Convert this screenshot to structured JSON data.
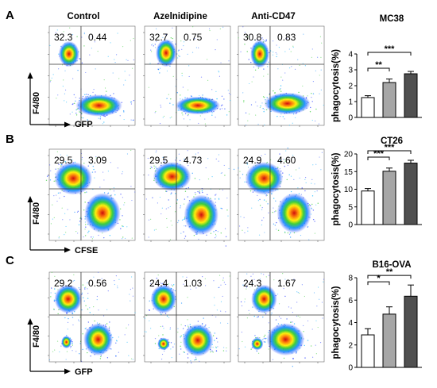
{
  "columns": [
    "Control",
    "Azelnidipine",
    "Anti-CD47"
  ],
  "rows": [
    {
      "label": "A",
      "xaxis": "GFP",
      "yaxis": "F4/80",
      "quadrants": [
        [
          "32.3",
          "0.44"
        ],
        [
          "32.7",
          "0.75"
        ],
        [
          "30.8",
          "0.83"
        ]
      ]
    },
    {
      "label": "B",
      "xaxis": "CFSE",
      "yaxis": "F4/80",
      "quadrants": [
        [
          "29.5",
          "3.09"
        ],
        [
          "29.5",
          "4.73"
        ],
        [
          "24.9",
          "4.60"
        ]
      ]
    },
    {
      "label": "C",
      "xaxis": "GFP",
      "yaxis": "F4/80",
      "quadrants": [
        [
          "29.2",
          "0.56"
        ],
        [
          "24.4",
          "1.03"
        ],
        [
          "24.3",
          "1.67"
        ]
      ]
    }
  ],
  "chart_data": [
    {
      "type": "bar",
      "title": "MC38",
      "ylabel": "phagocytosis(%)",
      "ylim": [
        0,
        4
      ],
      "yticks": [
        "0",
        "1",
        "2",
        "3",
        "4"
      ],
      "values": [
        1.25,
        2.2,
        2.75
      ],
      "errors": [
        0.12,
        0.22,
        0.15
      ],
      "bar_colors": [
        "#ffffff",
        "#a6a6a6",
        "#505050"
      ],
      "significance": [
        {
          "from": 0,
          "to": 1,
          "label": "**"
        },
        {
          "from": 0,
          "to": 2,
          "label": "***"
        }
      ]
    },
    {
      "type": "bar",
      "title": "CT26",
      "ylabel": "phagocytosis(%)",
      "ylim": [
        0,
        20
      ],
      "yticks": [
        "0",
        "5",
        "10",
        "15",
        "20"
      ],
      "values": [
        9.5,
        15.1,
        17.4
      ],
      "errors": [
        0.7,
        0.9,
        0.8
      ],
      "bar_colors": [
        "#ffffff",
        "#a6a6a6",
        "#505050"
      ],
      "significance": [
        {
          "from": 0,
          "to": 1,
          "label": "***"
        },
        {
          "from": 0,
          "to": 2,
          "label": "***"
        }
      ]
    },
    {
      "type": "bar",
      "title": "B16-OVA",
      "ylabel": "phagocytosis(%)",
      "ylim": [
        0,
        8
      ],
      "yticks": [
        "0",
        "2",
        "4",
        "6",
        "8"
      ],
      "values": [
        2.9,
        4.75,
        6.35
      ],
      "errors": [
        0.55,
        0.65,
        1.0
      ],
      "bar_colors": [
        "#ffffff",
        "#a6a6a6",
        "#505050"
      ],
      "significance": [
        {
          "from": 0,
          "to": 1,
          "label": "*"
        },
        {
          "from": 0,
          "to": 2,
          "label": "**"
        }
      ]
    }
  ]
}
